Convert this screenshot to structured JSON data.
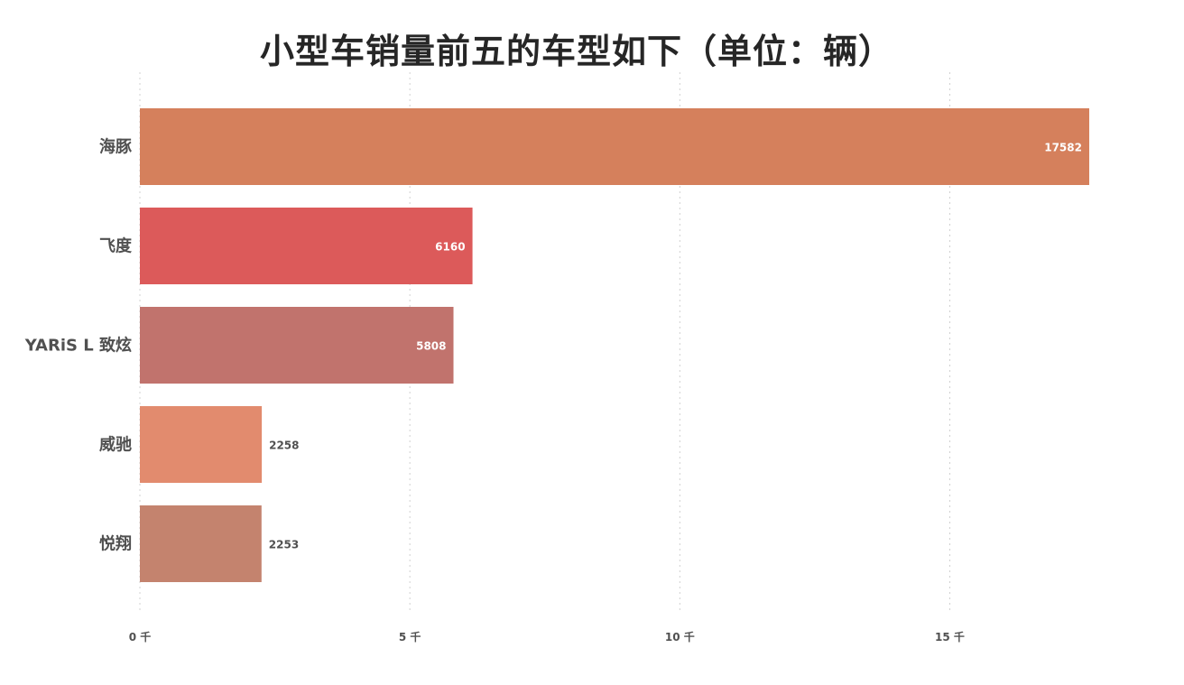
{
  "chart_data": {
    "type": "bar",
    "orientation": "horizontal",
    "title": "小型车销量前五的车型如下（单位：辆）",
    "categories": [
      "海豚",
      "飞度",
      "YARiS L 致炫",
      "威驰",
      "悦翔"
    ],
    "values": [
      17582,
      6160,
      5808,
      2258,
      2253
    ],
    "colors": [
      "#d5805c",
      "#dc5a5a",
      "#c1736d",
      "#e28b6e",
      "#c4836e"
    ],
    "xlim": [
      0,
      18000
    ],
    "x_ticks": [
      0,
      5000,
      10000,
      15000
    ],
    "x_tick_labels": [
      "0 千",
      "5 千",
      "10 千",
      "15 千"
    ],
    "xlabel": "",
    "ylabel": "",
    "grid": "vertical-dotted",
    "legend": "none"
  }
}
